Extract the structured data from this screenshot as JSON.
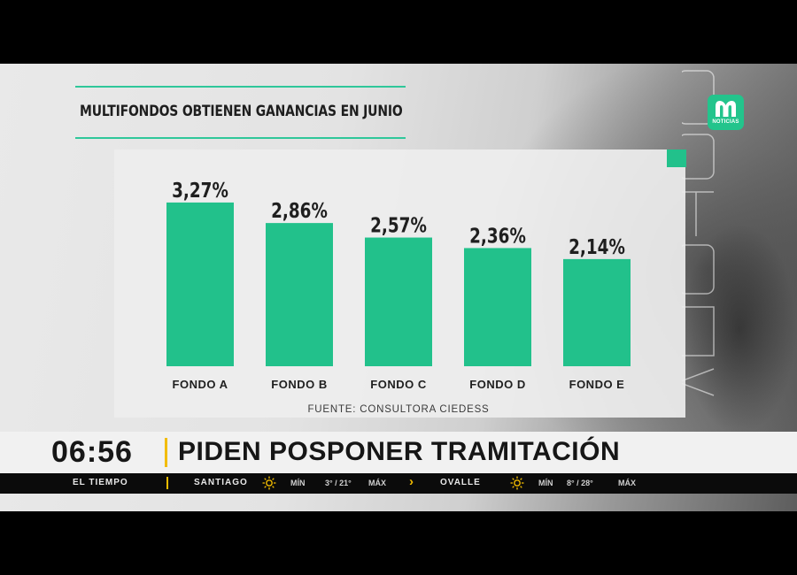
{
  "title": "MULTIFONDOS OBTIENEN GANANCIAS EN JUNIO",
  "logo_text": "NOTICIAS",
  "source": "FUENTE: CONSULTORA CIEDESS",
  "accent_color": "#22c18b",
  "chart_data": {
    "type": "bar",
    "title": "MULTIFONDOS OBTIENEN GANANCIAS EN JUNIO",
    "categories": [
      "FONDO A",
      "FONDO B",
      "FONDO C",
      "FONDO D",
      "FONDO E"
    ],
    "values": [
      3.27,
      2.86,
      2.57,
      2.36,
      2.14
    ],
    "value_labels": [
      "3,27%",
      "2,86%",
      "2,57%",
      "2,36%",
      "2,14%"
    ],
    "bar_color": "#22c18b",
    "xlabel": "",
    "ylabel": "",
    "grid": false,
    "legend": "none"
  },
  "ticker": {
    "time": "06:56",
    "headline": "PIDEN POSPONER TRAMITACIÓN",
    "section": "EL TIEMPO",
    "cities": [
      {
        "name": "SANTIAGO",
        "min_label": "MÍN",
        "temps": "3° / 21°",
        "max_label": "MÁX"
      },
      {
        "name": "OVALLE",
        "min_label": "MÍN",
        "temps": "8° / 28°",
        "max_label": "MÁX"
      }
    ]
  }
}
